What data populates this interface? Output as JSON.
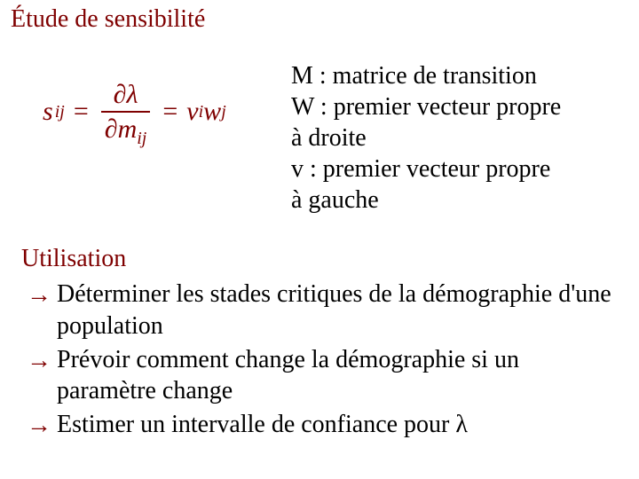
{
  "colors": {
    "heading": "#7f0000",
    "body": "#000000",
    "background": "#ffffff"
  },
  "typography": {
    "font_family": "Times New Roman",
    "title_fontsize_pt": 21,
    "body_fontsize_pt": 21,
    "formula_fontsize_pt": 22,
    "line_height": 1.28
  },
  "section1": {
    "title": "Étude de sensibilité"
  },
  "formula": {
    "s": "s",
    "sub_ij": "ij",
    "eq": "=",
    "partial": "∂",
    "lambda": "λ",
    "m": "m",
    "v": "v",
    "sub_i": "i",
    "w": "w",
    "sub_j": "j"
  },
  "definitions": {
    "line1": "M : matrice de transition",
    "line2": "W : premier vecteur propre",
    "line3": "à droite",
    "line4": "v : premier vecteur propre",
    "line5": "à gauche"
  },
  "section2": {
    "title": "Utilisation"
  },
  "bullets": {
    "arrow": "→",
    "item1": "Déterminer les stades critiques de la démographie d'une population",
    "item2": "Prévoir comment change la démographie si un paramètre change",
    "item3_prefix": "Estimer un intervalle de confiance pour ",
    "item3_lambda": "λ"
  }
}
